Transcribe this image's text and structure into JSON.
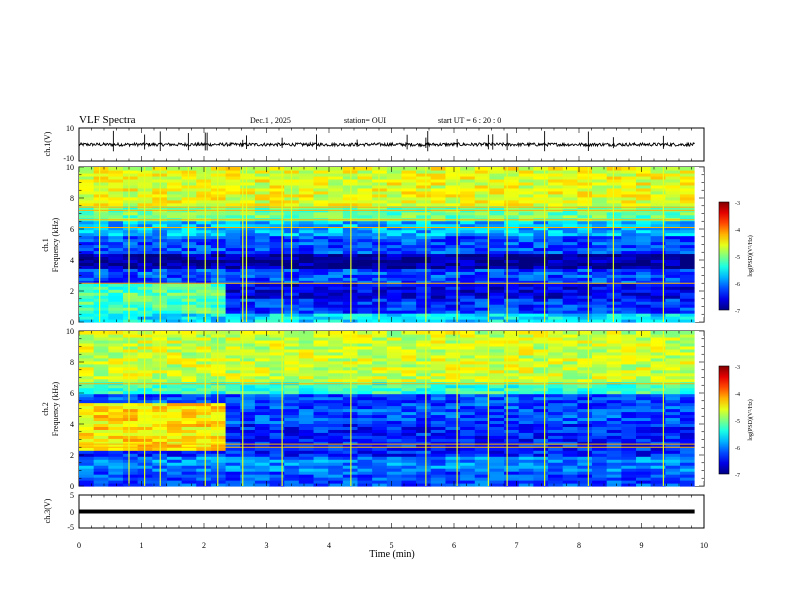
{
  "chart_data": {
    "type": "heatmap",
    "header": {
      "title": "VLF Spectra",
      "date": "Dec.1 , 2025",
      "station": "station= OUI",
      "start": "start  UT =   6 : 20 : 0"
    },
    "x_axis": {
      "label": "Time (min)",
      "range": [
        0,
        10
      ],
      "ticks": [
        "0",
        "1",
        "2",
        "3",
        "4",
        "5",
        "6",
        "7",
        "8",
        "9",
        "10"
      ],
      "data_end_min": 9.85
    },
    "panels": [
      {
        "id": "ch1-waveform",
        "kind": "waveform",
        "ylabel": "ch.1(V)",
        "ylim": [
          -10,
          10
        ],
        "yticks": [
          "10",
          "-10"
        ],
        "baseline": 0,
        "noise_amplitude": 1.0,
        "spike_times_min": [
          0.55,
          1.05,
          1.3,
          1.75,
          2.02,
          2.05,
          2.62,
          2.68,
          3.25,
          3.8,
          4.45,
          5.25,
          5.55,
          5.58,
          6.05,
          6.55,
          6.62,
          6.85,
          7.45,
          8.15,
          8.55,
          9.35
        ]
      },
      {
        "id": "ch1-spectrogram",
        "kind": "spectrogram",
        "ylabel_channel": "ch.1",
        "ylabel": "Frequency (kHz)",
        "ylim": [
          0,
          10
        ],
        "yticks": [
          "0",
          "2",
          "4",
          "6",
          "8",
          "10"
        ],
        "colorbar": {
          "label": "log(PSD)(V²/Hz)",
          "range": [
            -7,
            -3
          ],
          "ticks": [
            "-3",
            "-4",
            "-5",
            "-6",
            "-7"
          ]
        },
        "background_log_psd": [
          {
            "freq_khz": [
              0.0,
              0.5
            ],
            "value": -5.6
          },
          {
            "freq_khz": [
              0.5,
              1.5
            ],
            "value": -6.3
          },
          {
            "freq_khz": [
              1.5,
              2.5
            ],
            "value": -6.6
          },
          {
            "freq_khz": [
              2.5,
              3.5
            ],
            "value": -6.2
          },
          {
            "freq_khz": [
              3.5,
              4.5
            ],
            "value": -6.9
          },
          {
            "freq_khz": [
              4.5,
              5.5
            ],
            "value": -6.2
          },
          {
            "freq_khz": [
              5.5,
              6.5
            ],
            "value": -5.8
          },
          {
            "freq_khz": [
              6.5,
              7.5
            ],
            "value": -5.1
          },
          {
            "freq_khz": [
              7.5,
              10.0
            ],
            "value": -4.6
          }
        ],
        "early_segment": {
          "time_min": [
            0,
            2.4
          ],
          "freq_khz": [
            0.5,
            2.6
          ],
          "value": -5.2
        },
        "horizontal_lines_khz": [
          2.5,
          6.1,
          6.6,
          7.2,
          7.4
        ],
        "impulsive_times_min": [
          0.33,
          0.8,
          1.05,
          1.3,
          1.75,
          2.02,
          2.22,
          2.62,
          2.68,
          3.25,
          3.4,
          4.35,
          4.8,
          5.55,
          6.05,
          6.55,
          6.85,
          7.45,
          8.15,
          8.55,
          9.35
        ]
      },
      {
        "id": "ch2-spectrogram",
        "kind": "spectrogram",
        "ylabel_channel": "ch.2",
        "ylabel": "Frequency (kHz)",
        "ylim": [
          0,
          10
        ],
        "yticks": [
          "0",
          "2",
          "4",
          "6",
          "8",
          "10"
        ],
        "colorbar": {
          "label": "log(PSD)(V²/Hz)",
          "range": [
            -7,
            -3
          ],
          "ticks": [
            "-3",
            "-4",
            "-5",
            "-6",
            "-7"
          ]
        },
        "background_log_psd": [
          {
            "freq_khz": [
              0.0,
              1.0
            ],
            "value": -6.2
          },
          {
            "freq_khz": [
              1.0,
              2.0
            ],
            "value": -6.0
          },
          {
            "freq_khz": [
              2.0,
              4.0
            ],
            "value": -6.4
          },
          {
            "freq_khz": [
              4.0,
              6.0
            ],
            "value": -6.2
          },
          {
            "freq_khz": [
              6.0,
              6.7
            ],
            "value": -5.3
          },
          {
            "freq_khz": [
              6.7,
              10.0
            ],
            "value": -4.7
          }
        ],
        "early_segment": {
          "time_min": [
            0,
            2.4
          ],
          "freq_khz": [
            2.2,
            5.4
          ],
          "value": -4.4
        },
        "horizontal_lines_khz": [
          2.5,
          2.7,
          6.6
        ],
        "impulsive_times_min": [
          0.8,
          1.05,
          1.3,
          2.02,
          2.22,
          2.62,
          3.25,
          4.35,
          5.55,
          6.05,
          6.55,
          6.85,
          7.45,
          8.15,
          9.35
        ]
      },
      {
        "id": "ch3-waveform",
        "kind": "waveform",
        "ylabel": "ch.3(V)",
        "ylim": [
          -5,
          5
        ],
        "yticks": [
          "5",
          "0",
          "-5"
        ],
        "baseline": 0,
        "noise_amplitude": 0.3,
        "spike_times_min": []
      }
    ]
  }
}
